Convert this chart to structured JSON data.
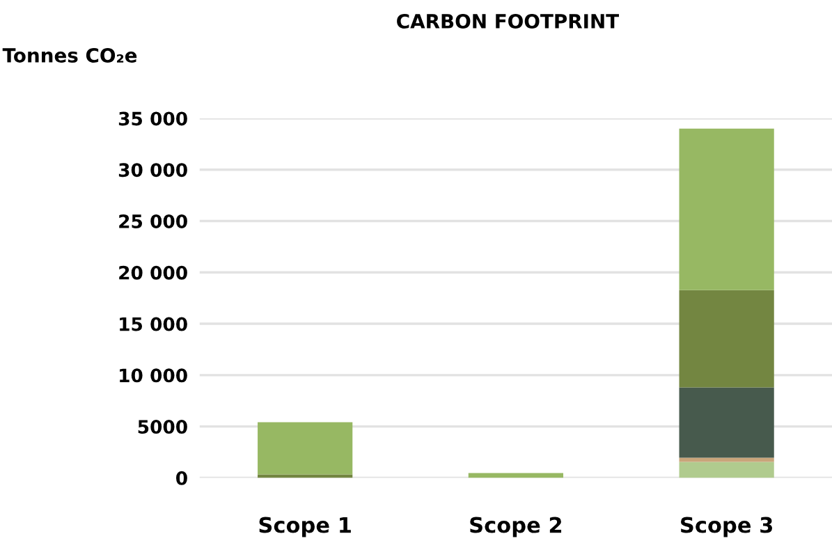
{
  "chart_data": {
    "type": "bar",
    "title": "CARBON FOOTPRINT",
    "ylabel": "Tonnes CO₂e",
    "categories": [
      "Scope 1",
      "Scope 2",
      "Scope 3"
    ],
    "stacked": true,
    "series": [
      {
        "color": "#b0cb8e",
        "values": [
          null,
          null,
          1560
        ]
      },
      {
        "color": "#c9a57a",
        "values": [
          null,
          null,
          400
        ]
      },
      {
        "color": "#475a4d",
        "values": [
          null,
          null,
          6840
        ]
      },
      {
        "color": "#738641",
        "values": [
          340,
          null,
          9480
        ]
      },
      {
        "color": "#97b863",
        "values": [
          5080,
          470,
          15720
        ]
      }
    ],
    "ylim": [
      0,
      35000
    ],
    "yticks": [
      0,
      5000,
      {
        "value": 10000,
        "label": "10 000"
      },
      {
        "value": 15000,
        "label": "15 000"
      },
      {
        "value": 20000,
        "label": "20 000"
      },
      {
        "value": 25000,
        "label": "25 000"
      },
      {
        "value": 30000,
        "label": "30 000"
      },
      {
        "value": 35000,
        "label": "35 000"
      }
    ],
    "grid": "y"
  }
}
